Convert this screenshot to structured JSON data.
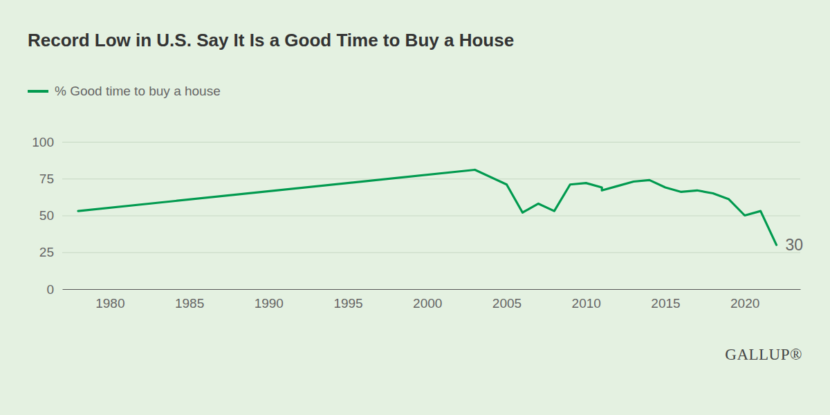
{
  "chart_data": {
    "type": "line",
    "title": "Record Low in U.S. Say It Is a Good Time to Buy a House",
    "x": [
      1978,
      2003,
      2005,
      2006,
      2007,
      2008,
      2009,
      2010,
      2011,
      2011,
      2012,
      2013,
      2014,
      2015,
      2016,
      2017,
      2018,
      2019,
      2020,
      2021,
      2022
    ],
    "series": [
      {
        "name": "% Good time to buy a house",
        "color": "#019a4f",
        "values": [
          53,
          81,
          71,
          52,
          58,
          53,
          71,
          72,
          69,
          67,
          70,
          73,
          74,
          69,
          66,
          67,
          65,
          61,
          50,
          53,
          30
        ]
      }
    ],
    "xlim": [
      1977,
      2023.5
    ],
    "xticks": [
      1980,
      1985,
      1990,
      1995,
      2000,
      2005,
      2010,
      2015,
      2020
    ],
    "ylim": [
      0,
      100
    ],
    "yticks": [
      0,
      25,
      50,
      75,
      100
    ],
    "grid": true,
    "legend": "top-left",
    "annotation": "30",
    "source": "GALLUP®"
  }
}
